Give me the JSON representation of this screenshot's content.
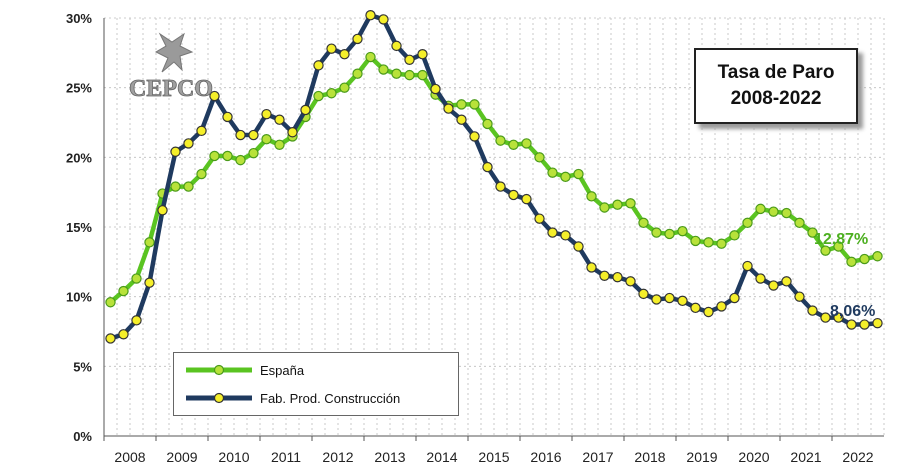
{
  "logo_text": "CEPCO",
  "title_box": {
    "line1": "Tasa de Paro",
    "line2": "2008-2022"
  },
  "end_labels": {
    "espana": "12,87%",
    "construccion": "8,06%"
  },
  "colors": {
    "espana": "#5ac421",
    "espana_marker": "#b8e23a",
    "construccion": "#1f3a5f",
    "construccion_marker": "#f5ef2a",
    "grid": "#bdbdbd"
  },
  "chart_data": {
    "type": "line",
    "title": "Tasa de Paro 2008-2022",
    "xlabel": "",
    "ylabel": "",
    "ylim": [
      0,
      30
    ],
    "xlim": [
      2008.0,
      2023.0
    ],
    "grid": true,
    "legend_position": "bottom-left",
    "y_ticks": [
      "0%",
      "5%",
      "10%",
      "15%",
      "20%",
      "25%",
      "30%"
    ],
    "x_ticks": [
      "2008",
      "2009",
      "2010",
      "2011",
      "2012",
      "2013",
      "2014",
      "2015",
      "2016",
      "2017",
      "2018",
      "2019",
      "2020",
      "2021",
      "2022"
    ],
    "frequency": "quarterly",
    "series": [
      {
        "name": "España",
        "values": [
          9.6,
          10.4,
          11.3,
          13.9,
          17.4,
          17.9,
          17.9,
          18.8,
          20.1,
          20.1,
          19.8,
          20.3,
          21.3,
          20.9,
          21.5,
          22.9,
          24.4,
          24.6,
          25.0,
          26.0,
          27.2,
          26.3,
          26.0,
          25.9,
          25.9,
          24.5,
          23.7,
          23.8,
          23.8,
          22.4,
          21.2,
          20.9,
          21.0,
          20.0,
          18.9,
          18.6,
          18.8,
          17.2,
          16.4,
          16.6,
          16.7,
          15.3,
          14.6,
          14.5,
          14.7,
          14.0,
          13.9,
          13.8,
          14.4,
          15.3,
          16.3,
          16.1,
          16.0,
          15.3,
          14.6,
          13.3,
          13.6,
          12.5,
          12.7,
          12.9
        ]
      },
      {
        "name": "Fab. Prod. Construcción",
        "values": [
          7.0,
          7.3,
          8.3,
          11.0,
          16.2,
          20.4,
          21.0,
          21.9,
          24.4,
          22.9,
          21.6,
          21.6,
          23.1,
          22.7,
          21.8,
          23.4,
          26.6,
          27.8,
          27.4,
          28.5,
          30.2,
          29.9,
          28.0,
          27.0,
          27.4,
          24.9,
          23.5,
          22.7,
          21.5,
          19.3,
          17.9,
          17.3,
          17.0,
          15.6,
          14.6,
          14.4,
          13.6,
          12.1,
          11.5,
          11.4,
          11.1,
          10.2,
          9.8,
          9.9,
          9.7,
          9.2,
          8.9,
          9.3,
          9.9,
          12.2,
          11.3,
          10.8,
          11.1,
          10.0,
          9.0,
          8.5,
          8.5,
          8.0,
          8.0,
          8.1
        ]
      }
    ]
  }
}
